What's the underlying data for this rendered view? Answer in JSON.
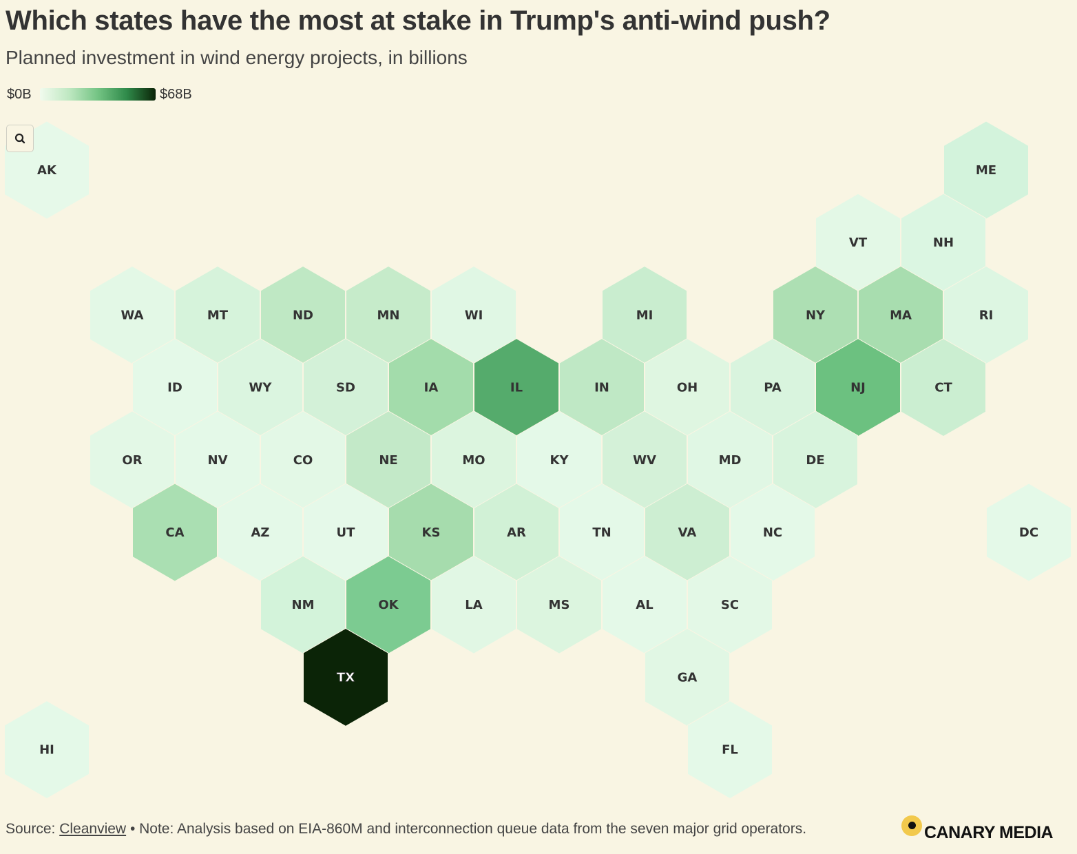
{
  "header": {
    "title": "Which states have the most at stake in Trump's anti-wind push?",
    "subtitle": "Planned investment in wind energy projects, in billions"
  },
  "legend": {
    "min_label": "$0B",
    "max_label": "$68B",
    "min_value": 0,
    "max_value": 68
  },
  "zoom_button": {
    "icon": "magnifier-icon"
  },
  "colors": {
    "background": "#f9f5e3",
    "scale_low": "#f1fbee",
    "scale_high": "#0b2407",
    "tile_stroke": "#f9f5e3"
  },
  "map": {
    "type": "hex-tile-map",
    "states": [
      {
        "abbr": "AK",
        "col": 0,
        "row": 0,
        "fill": "#e6f9e9"
      },
      {
        "abbr": "ME",
        "col": 11,
        "row": 0,
        "fill": "#d3f3dc"
      },
      {
        "abbr": "VT",
        "col": 9.5,
        "row": 1,
        "fill": "#e3f8e6"
      },
      {
        "abbr": "NH",
        "col": 10.5,
        "row": 1,
        "fill": "#dbf6e2"
      },
      {
        "abbr": "WA",
        "col": 1,
        "row": 2,
        "fill": "#e3f8e6"
      },
      {
        "abbr": "MT",
        "col": 2,
        "row": 2,
        "fill": "#d6f3db"
      },
      {
        "abbr": "ND",
        "col": 3,
        "row": 2,
        "fill": "#bfe8c4"
      },
      {
        "abbr": "MN",
        "col": 4,
        "row": 2,
        "fill": "#c6ebca"
      },
      {
        "abbr": "WI",
        "col": 5,
        "row": 2,
        "fill": "#e0f7e4"
      },
      {
        "abbr": "MI",
        "col": 7,
        "row": 2,
        "fill": "#c9edcf"
      },
      {
        "abbr": "NY",
        "col": 9,
        "row": 2,
        "fill": "#addfb3"
      },
      {
        "abbr": "MA",
        "col": 10,
        "row": 2,
        "fill": "#a8ddaf"
      },
      {
        "abbr": "RI",
        "col": 11,
        "row": 2,
        "fill": "#ddf6e2"
      },
      {
        "abbr": "ID",
        "col": 1.5,
        "row": 3,
        "fill": "#e4f9e8"
      },
      {
        "abbr": "WY",
        "col": 2.5,
        "row": 3,
        "fill": "#dbf5e0"
      },
      {
        "abbr": "SD",
        "col": 3.5,
        "row": 3,
        "fill": "#d3f1d8"
      },
      {
        "abbr": "IA",
        "col": 4.5,
        "row": 3,
        "fill": "#a3dcab"
      },
      {
        "abbr": "IL",
        "col": 5.5,
        "row": 3,
        "fill": "#55ab6c"
      },
      {
        "abbr": "IN",
        "col": 6.5,
        "row": 3,
        "fill": "#bfe8c5"
      },
      {
        "abbr": "OH",
        "col": 7.5,
        "row": 3,
        "fill": "#dff6e1"
      },
      {
        "abbr": "PA",
        "col": 8.5,
        "row": 3,
        "fill": "#d9f4de"
      },
      {
        "abbr": "NJ",
        "col": 9.5,
        "row": 3,
        "fill": "#6cc180"
      },
      {
        "abbr": "CT",
        "col": 10.5,
        "row": 3,
        "fill": "#cbeed1"
      },
      {
        "abbr": "OR",
        "col": 1,
        "row": 4,
        "fill": "#e3f8e6"
      },
      {
        "abbr": "NV",
        "col": 2,
        "row": 4,
        "fill": "#e4f9e8"
      },
      {
        "abbr": "CO",
        "col": 3,
        "row": 4,
        "fill": "#e3f8e6"
      },
      {
        "abbr": "NE",
        "col": 4,
        "row": 4,
        "fill": "#c3e9c8"
      },
      {
        "abbr": "MO",
        "col": 5,
        "row": 4,
        "fill": "#dcf5df"
      },
      {
        "abbr": "KY",
        "col": 6,
        "row": 4,
        "fill": "#e4f9e8"
      },
      {
        "abbr": "WV",
        "col": 7,
        "row": 4,
        "fill": "#d4f1d8"
      },
      {
        "abbr": "MD",
        "col": 8,
        "row": 4,
        "fill": "#e0f7e4"
      },
      {
        "abbr": "DE",
        "col": 9,
        "row": 4,
        "fill": "#d8f4dd"
      },
      {
        "abbr": "CA",
        "col": 1.5,
        "row": 5,
        "fill": "#aadfb2"
      },
      {
        "abbr": "AZ",
        "col": 2.5,
        "row": 5,
        "fill": "#e4f9e8"
      },
      {
        "abbr": "UT",
        "col": 3.5,
        "row": 5,
        "fill": "#e5f9e9"
      },
      {
        "abbr": "KS",
        "col": 4.5,
        "row": 5,
        "fill": "#a6dcad"
      },
      {
        "abbr": "AR",
        "col": 5.5,
        "row": 5,
        "fill": "#d1f1d6"
      },
      {
        "abbr": "TN",
        "col": 6.5,
        "row": 5,
        "fill": "#e4f9e8"
      },
      {
        "abbr": "VA",
        "col": 7.5,
        "row": 5,
        "fill": "#cdeed2"
      },
      {
        "abbr": "NC",
        "col": 8.5,
        "row": 5,
        "fill": "#e4f9e8"
      },
      {
        "abbr": "DC",
        "col": 11.5,
        "row": 5,
        "fill": "#e4f9e8"
      },
      {
        "abbr": "NM",
        "col": 3,
        "row": 6,
        "fill": "#d3f3da"
      },
      {
        "abbr": "OK",
        "col": 4,
        "row": 6,
        "fill": "#7ccb91"
      },
      {
        "abbr": "LA",
        "col": 5,
        "row": 6,
        "fill": "#e1f7e4"
      },
      {
        "abbr": "MS",
        "col": 6,
        "row": 6,
        "fill": "#dcf5df"
      },
      {
        "abbr": "AL",
        "col": 7,
        "row": 6,
        "fill": "#e4f9e8"
      },
      {
        "abbr": "SC",
        "col": 8,
        "row": 6,
        "fill": "#e3f8e6"
      },
      {
        "abbr": "TX",
        "col": 3.5,
        "row": 7,
        "fill": "#0b2407"
      },
      {
        "abbr": "GA",
        "col": 7.5,
        "row": 7,
        "fill": "#e1f7e4"
      },
      {
        "abbr": "HI",
        "col": 0,
        "row": 8,
        "fill": "#e4f9e8"
      },
      {
        "abbr": "FL",
        "col": 8,
        "row": 8,
        "fill": "#e4f9e8"
      }
    ]
  },
  "footer": {
    "source_prefix": "Source: ",
    "source_link": "Cleanview",
    "note": " • Note: Analysis based on EIA-860M and interconnection queue data from the seven major grid operators."
  },
  "logo": {
    "text": "CANARY MEDIA"
  }
}
